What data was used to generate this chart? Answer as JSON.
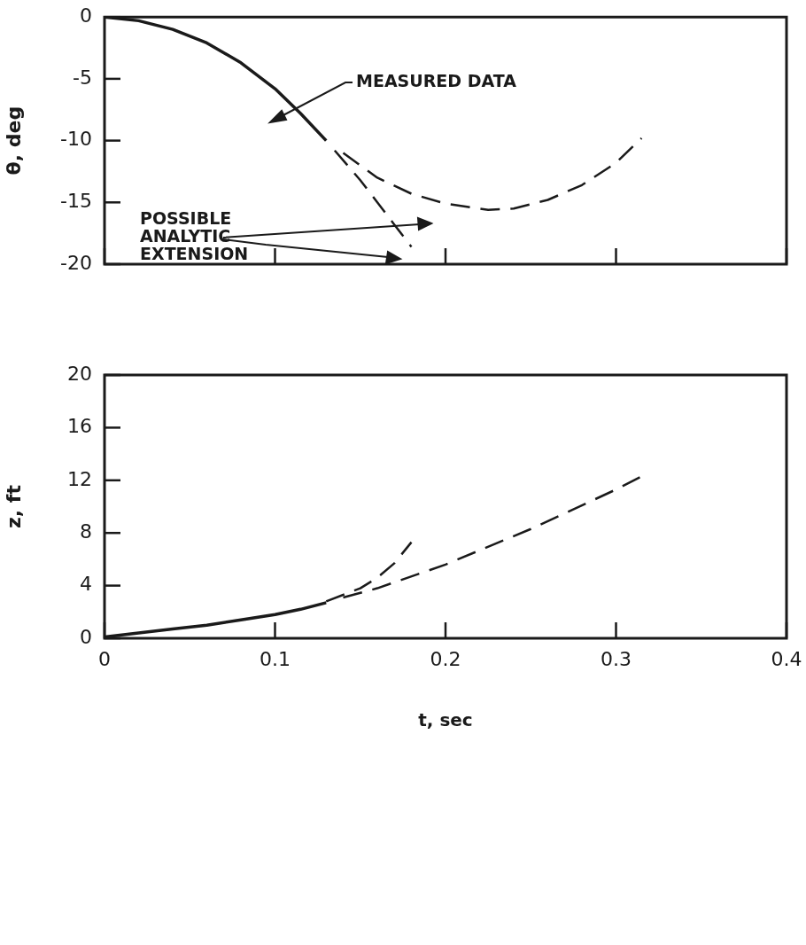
{
  "chart_data": [
    {
      "type": "line",
      "ylabel": "θ, deg",
      "xlim": [
        0,
        0.4
      ],
      "ylim": [
        -20,
        0
      ],
      "xticks": [
        0,
        0.1,
        0.2,
        0.3,
        0.4
      ],
      "yticks": [
        0,
        -5,
        -10,
        -15,
        -20
      ],
      "tick_labels": "y",
      "grid": false,
      "legend": false,
      "marker": "none",
      "annotations": [
        "MEASURED DATA",
        "POSSIBLE\nANALYTIC\nEXTENSION"
      ],
      "series": [
        {
          "color": "#1a1a1a",
          "line_style": "solid",
          "x": [
            0,
            0.02,
            0.04,
            0.06,
            0.08,
            0.1,
            0.115,
            0.13
          ],
          "values": [
            0,
            -0.3,
            -1.0,
            -2.1,
            -3.7,
            -5.8,
            -7.8,
            -10.0
          ]
        },
        {
          "color": "#1a1a1a",
          "line_style": "dashed",
          "x": [
            0.135,
            0.15,
            0.16,
            0.17,
            0.18
          ],
          "values": [
            -10.8,
            -13.2,
            -15.0,
            -16.8,
            -18.6
          ]
        },
        {
          "color": "#1a1a1a",
          "line_style": "dashed",
          "x": [
            0.14,
            0.16,
            0.18,
            0.2,
            0.225,
            0.24,
            0.26,
            0.28,
            0.3,
            0.315
          ],
          "values": [
            -11.0,
            -13.0,
            -14.3,
            -15.1,
            -15.6,
            -15.5,
            -14.8,
            -13.6,
            -11.8,
            -9.8
          ]
        }
      ]
    },
    {
      "type": "line",
      "ylabel": "z, ft",
      "xlabel": "t, sec",
      "xlim": [
        0,
        0.4
      ],
      "ylim": [
        0,
        20
      ],
      "xticks": [
        0,
        0.1,
        0.2,
        0.3,
        0.4
      ],
      "yticks": [
        0,
        4,
        8,
        12,
        16,
        20
      ],
      "grid": false,
      "legend": false,
      "marker": "none",
      "series": [
        {
          "color": "#1a1a1a",
          "line_style": "solid",
          "x": [
            0,
            0.02,
            0.04,
            0.06,
            0.08,
            0.1,
            0.115,
            0.13
          ],
          "values": [
            0.1,
            0.4,
            0.7,
            1.0,
            1.4,
            1.8,
            2.2,
            2.7
          ]
        },
        {
          "color": "#1a1a1a",
          "line_style": "dashed",
          "x": [
            0.13,
            0.15,
            0.16,
            0.17,
            0.18
          ],
          "values": [
            2.8,
            3.8,
            4.6,
            5.7,
            7.3
          ]
        },
        {
          "color": "#1a1a1a",
          "line_style": "dashed",
          "x": [
            0.14,
            0.16,
            0.2,
            0.25,
            0.3,
            0.315
          ],
          "values": [
            3.1,
            3.8,
            5.6,
            8.3,
            11.3,
            12.3
          ]
        }
      ]
    }
  ]
}
